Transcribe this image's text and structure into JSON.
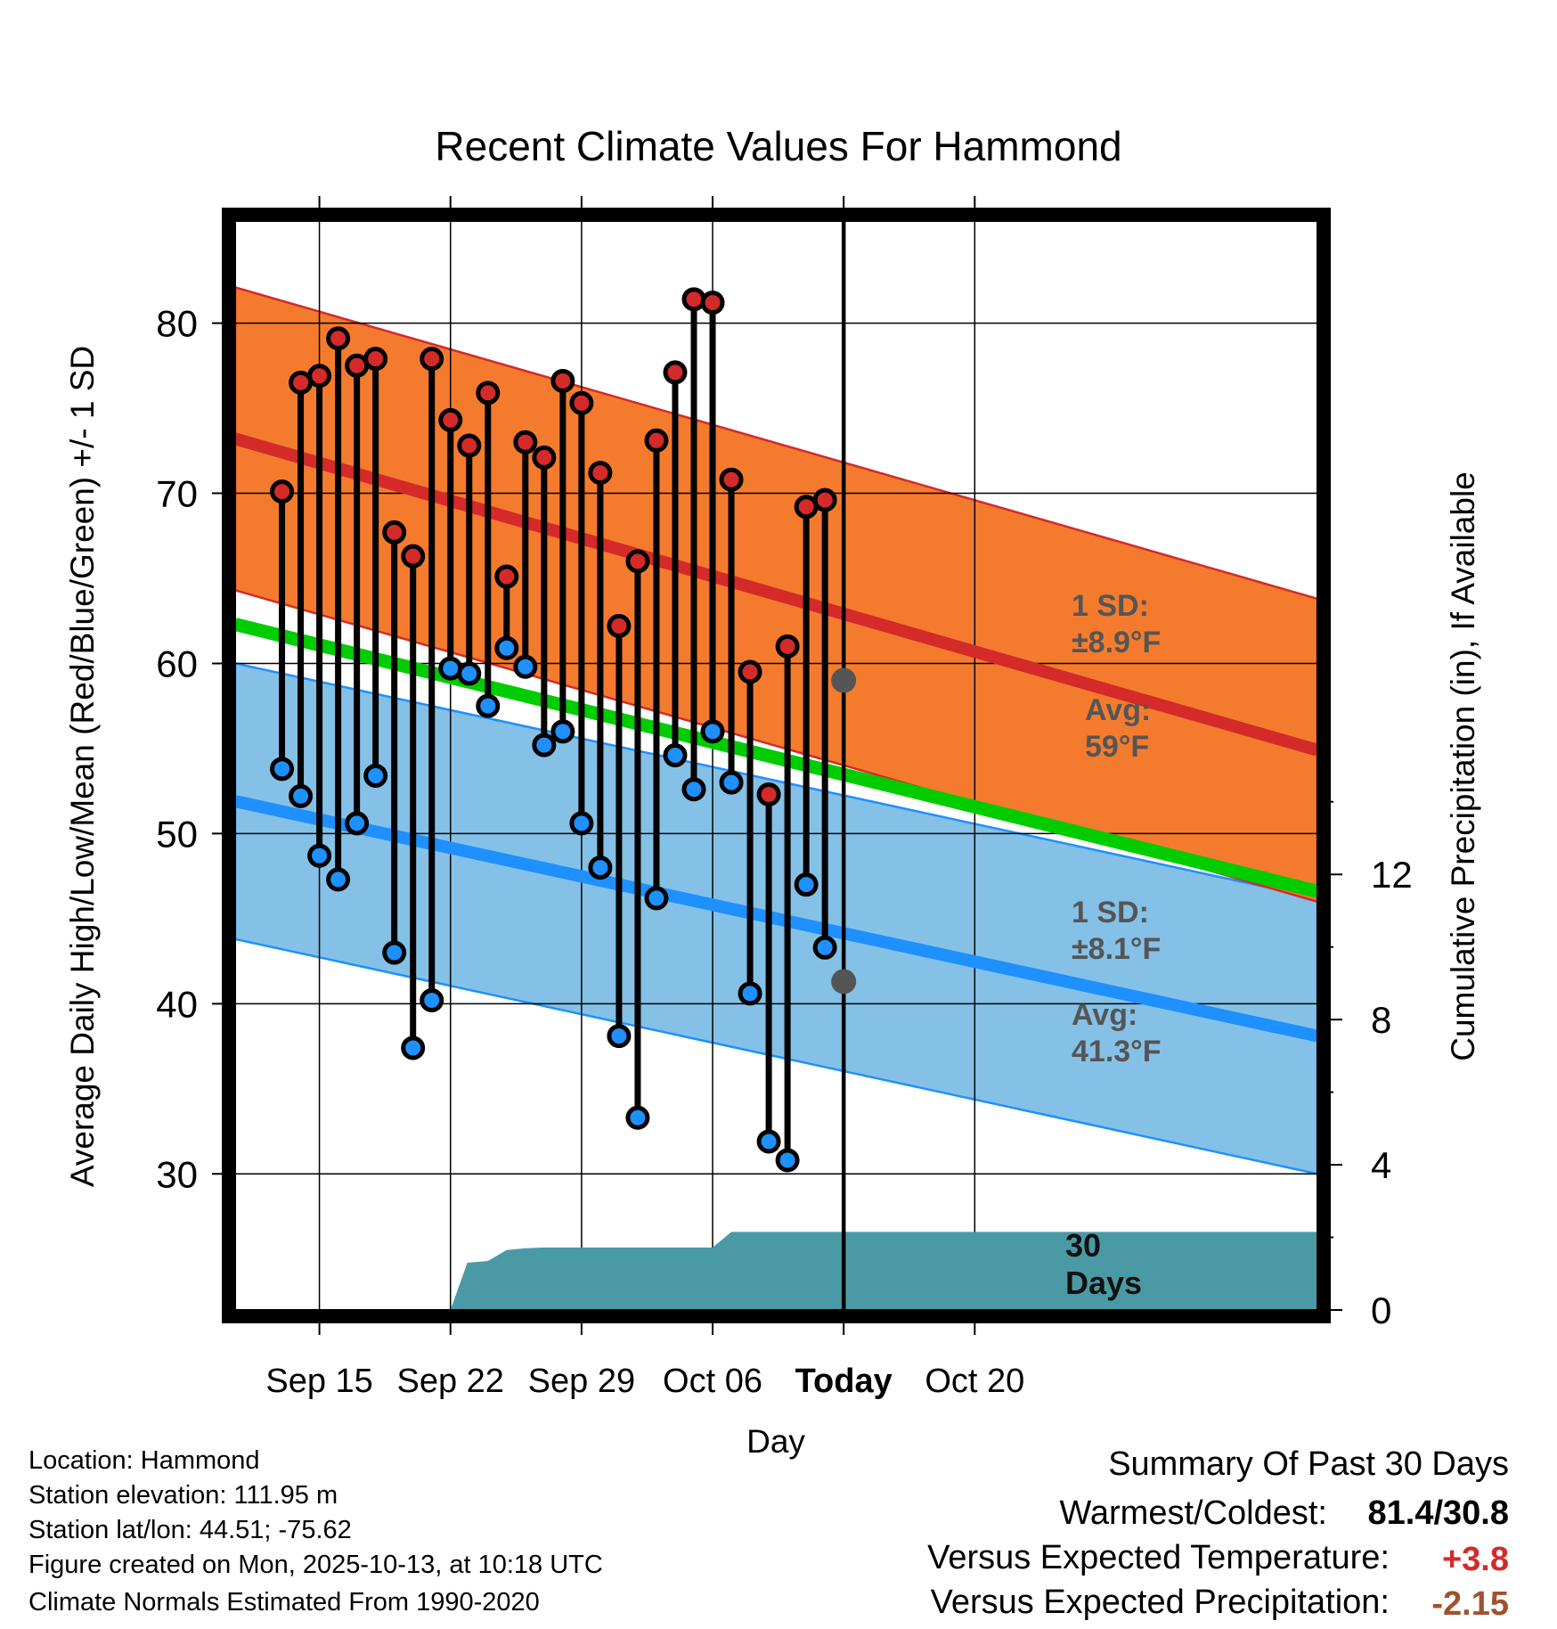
{
  "chart_data": {
    "type": "line",
    "title": "Recent Climate Values For Hammond",
    "xlabel": "Day",
    "ylabel": "Average Daily High/Low/Mean (Red/Blue/Green) +/- 1 SD",
    "y2label": "Cumulative Precipitation (in), If Available",
    "ylim": [
      22,
      86
    ],
    "y2lim": [
      0,
      30
    ],
    "y_ticks": [
      "30",
      "40",
      "50",
      "60",
      "70",
      "80"
    ],
    "y_tick_values": [
      30,
      40,
      50,
      60,
      70,
      80
    ],
    "y2_ticks": [
      "0",
      "4",
      "8",
      "12"
    ],
    "y2_tick_values": [
      0,
      4,
      8,
      12
    ],
    "xlim": [
      -4.5,
      53.3
    ],
    "x_ticks": [
      "Sep 15",
      "Sep 22",
      "Sep 29",
      "Oct 06",
      "Today",
      "Oct 20"
    ],
    "x_tick_days": [
      0,
      7,
      14,
      21,
      28,
      35
    ],
    "today_day": 28,
    "normal_high": {
      "start_day": -4.5,
      "end_day": 53.3,
      "start": 73.2,
      "end": 54.9,
      "sd": 8.9
    },
    "normal_low": {
      "start_day": -4.5,
      "end_day": 53.3,
      "start": 51.9,
      "end": 38.1,
      "sd": 8.1
    },
    "normal_mean": {
      "start_day": -4.5,
      "end_day": 53.3,
      "start": 62.3,
      "end": 46.6
    },
    "daily": {
      "days": [
        -2,
        -1,
        0,
        1,
        2,
        3,
        4,
        5,
        6,
        7,
        8,
        9,
        10,
        11,
        12,
        13,
        14,
        15,
        16,
        17,
        18,
        19,
        20,
        21,
        22,
        23,
        24,
        25,
        26,
        27
      ],
      "highs": [
        70.1,
        76.5,
        76.9,
        79.1,
        77.5,
        77.9,
        67.7,
        66.3,
        77.9,
        74.3,
        72.8,
        75.9,
        65.1,
        73.0,
        72.1,
        76.6,
        75.3,
        71.2,
        62.2,
        66.0,
        73.1,
        77.1,
        81.4,
        81.2,
        70.8,
        59.5,
        52.3,
        61.0,
        69.2,
        69.6
      ],
      "lows": [
        53.8,
        52.2,
        48.7,
        47.3,
        50.6,
        53.4,
        43.0,
        37.4,
        40.2,
        59.7,
        59.4,
        57.5,
        60.9,
        59.8,
        55.2,
        56.0,
        50.6,
        48.0,
        38.1,
        33.3,
        46.2,
        54.6,
        52.6,
        56.0,
        53.0,
        40.6,
        31.9,
        30.8,
        47.0,
        43.3
      ]
    },
    "precip": {
      "points": [
        [
          -4.5,
          0
        ],
        [
          7,
          0
        ],
        [
          7.9,
          1.3
        ],
        [
          9,
          1.35
        ],
        [
          10,
          1.65
        ],
        [
          11,
          1.7
        ],
        [
          12,
          1.72
        ],
        [
          21,
          1.72
        ],
        [
          22,
          2.15
        ],
        [
          53.3,
          2.15
        ]
      ]
    },
    "annotations": {
      "high_sd_title": "1 SD:",
      "high_sd_value": "±8.9°F",
      "high_avg_title": "Avg:",
      "high_avg_value": "59°F",
      "high_avg_marker": 59,
      "low_sd_title": "1 SD:",
      "low_sd_value": "±8.1°F",
      "low_avg_title": "Avg:",
      "low_avg_value": "41.3°F",
      "low_avg_marker": 41.3,
      "days_line1": "30",
      "days_line2": "Days"
    },
    "colors": {
      "high_band": "#f47b2e",
      "high_line": "#d42a2a",
      "low_band": "#85c1e6",
      "low_line": "#1e90ff",
      "mean_line": "#00cc00",
      "precip": "#4a9aa5",
      "high_dot": "#d42a2a",
      "low_dot": "#1e90ff",
      "annotation": "#555555"
    }
  },
  "info": {
    "location": "Location: Hammond",
    "elevation": "Station elevation: 111.95 m",
    "latlon": "Station lat/lon: 44.51; -75.62",
    "created": "Figure created on Mon, 2025-10-13, at 10:18 UTC",
    "normals": "Climate Normals Estimated From 1990-2020"
  },
  "summary": {
    "title": "Summary Of Past 30 Days",
    "warmest_label": "Warmest/Coldest:",
    "warmest_value": "81.4/30.8",
    "temp_label": "Versus Expected Temperature:",
    "temp_value": "+3.8",
    "temp_color": "#d42a2a",
    "precip_label": "Versus Expected Precipitation:",
    "precip_value": "-2.15",
    "precip_color": "#a0522d"
  }
}
